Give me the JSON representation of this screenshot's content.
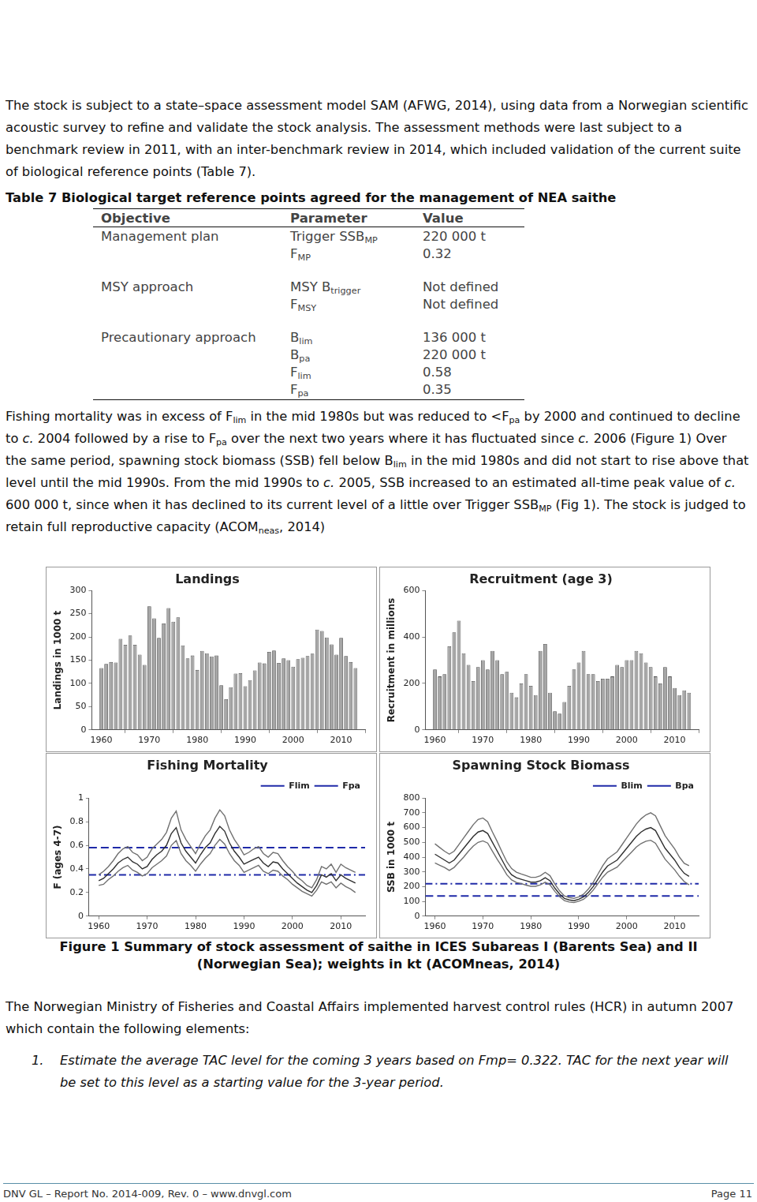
{
  "paragraphs": [
    [
      "The stock is subject to a state–space assessment model SAM (AFWG, 2014), using data from a Norwegian scientific acoustic survey to refine and validate the stock analysis. The assessment methods were last subject to a benchmark review in 2011, with an inter-benchmark review in 2014, which included validation of the current suite of biological reference points (Table 7)."
    ],
    [
      "Fishing mortality was in excess of F",
      {
        "sub": "lim"
      },
      " in the mid 1980s but was reduced to <F",
      {
        "sub": "pa"
      },
      " by 2000 and continued to decline to ",
      {
        "i": "c."
      },
      " 2004 followed by a rise to F",
      {
        "sub": "pa"
      },
      " over the next two years where it has fluctuated since ",
      {
        "i": "c."
      },
      " 2006 (Figure 1) Over the same period, spawning stock biomass (SSB) fell below B",
      {
        "sub": "lim"
      },
      " in the mid 1980s and did not start to rise above that level until the mid 1990s. From the mid 1990s to ",
      {
        "i": "c."
      },
      " 2005, SSB increased to an estimated all-time peak value of ",
      {
        "i": "c."
      },
      " 600 000 t, since when it has declined to its current level of a little over Trigger SSB",
      {
        "sub": "MP"
      },
      " (Fig 1). The stock is judged to retain full reproductive capacity (ACOM",
      {
        "sub": "neas"
      },
      ", 2014)"
    ],
    [
      "The Norwegian Ministry of Fisheries and Coastal Affairs implemented harvest control rules (HCR) in autumn 2007 which contain the following elements:"
    ]
  ],
  "table": {
    "title": "Table 7 Biological target reference points agreed for the management of NEA saithe",
    "header": [
      "Objective",
      "Parameter",
      "Value"
    ],
    "groups": [
      {
        "objective": "Management plan",
        "rows": [
          [
            [
              "Trigger SSB",
              {
                "sub": "MP"
              }
            ],
            "220 000 t"
          ],
          [
            [
              "F",
              {
                "sub": "MP"
              }
            ],
            "0.32"
          ]
        ]
      },
      {
        "objective": "MSY approach",
        "rows": [
          [
            [
              "MSY B",
              {
                "sub": "trigger"
              }
            ],
            "Not defined"
          ],
          [
            [
              "F",
              {
                "sub": "MSY"
              }
            ],
            "Not defined"
          ]
        ]
      },
      {
        "objective": "Precautionary approach",
        "rows": [
          [
            [
              "B",
              {
                "sub": "lim"
              }
            ],
            "136 000 t"
          ],
          [
            [
              "B",
              {
                "sub": "pa"
              }
            ],
            "220 000 t"
          ],
          [
            [
              "F",
              {
                "sub": "lim"
              }
            ],
            "0.58"
          ],
          [
            [
              "F",
              {
                "sub": "pa"
              }
            ],
            "0.35"
          ]
        ]
      }
    ]
  },
  "chart_data": [
    {
      "type": "bar",
      "title": "Landings",
      "y_label": "Landings in 1000 t",
      "x": [
        1960,
        1961,
        1962,
        1963,
        1964,
        1965,
        1966,
        1967,
        1968,
        1969,
        1970,
        1971,
        1972,
        1973,
        1974,
        1975,
        1976,
        1977,
        1978,
        1979,
        1980,
        1981,
        1982,
        1983,
        1984,
        1985,
        1986,
        1987,
        1988,
        1989,
        1990,
        1991,
        1992,
        1993,
        1994,
        1995,
        1996,
        1997,
        1998,
        1999,
        2000,
        2001,
        2002,
        2003,
        2004,
        2005,
        2006,
        2007,
        2008,
        2009,
        2010,
        2011,
        2012,
        2013
      ],
      "series": [
        {
          "color": "#a6a6a6",
          "values": [
            133,
            142,
            146,
            145,
            196,
            183,
            203,
            183,
            162,
            140,
            266,
            240,
            198,
            229,
            262,
            233,
            242,
            182,
            154,
            160,
            129,
            170,
            165,
            158,
            160,
            96,
            66,
            92,
            121,
            122,
            94,
            107,
            128,
            145,
            143,
            168,
            171,
            144,
            154,
            150,
            136,
            152,
            155,
            159,
            164,
            216,
            213,
            199,
            184,
            162,
            198,
            159,
            146,
            133
          ]
        }
      ],
      "xlim": [
        1958,
        2015
      ],
      "xticks": [
        1960,
        1970,
        1980,
        1990,
        2000,
        2010
      ],
      "ylim": [
        0,
        300
      ],
      "yticks": [
        0,
        50,
        100,
        150,
        200,
        250,
        300
      ],
      "grid": false
    },
    {
      "type": "bar",
      "title": "Recruitment (age 3)",
      "y_label": "Recruitment in millions",
      "x": [
        1960,
        1961,
        1962,
        1963,
        1964,
        1965,
        1966,
        1967,
        1968,
        1969,
        1970,
        1971,
        1972,
        1973,
        1974,
        1975,
        1976,
        1977,
        1978,
        1979,
        1980,
        1981,
        1982,
        1983,
        1984,
        1985,
        1986,
        1987,
        1988,
        1989,
        1990,
        1991,
        1992,
        1993,
        1994,
        1995,
        1996,
        1997,
        1998,
        1999,
        2000,
        2001,
        2002,
        2003,
        2004,
        2005,
        2006,
        2007,
        2008,
        2009,
        2010,
        2011,
        2012,
        2013
      ],
      "series": [
        {
          "color": "#a6a6a6",
          "values": [
            260,
            230,
            240,
            360,
            420,
            470,
            330,
            280,
            210,
            270,
            300,
            260,
            340,
            300,
            240,
            250,
            160,
            140,
            200,
            240,
            190,
            150,
            340,
            370,
            160,
            80,
            70,
            120,
            190,
            260,
            290,
            340,
            240,
            240,
            210,
            220,
            220,
            230,
            280,
            270,
            300,
            300,
            340,
            330,
            290,
            270,
            230,
            200,
            270,
            230,
            180,
            150,
            170,
            160
          ]
        }
      ],
      "xlim": [
        1958,
        2015
      ],
      "xticks": [
        1960,
        1970,
        1980,
        1990,
        2000,
        2010
      ],
      "ylim": [
        0,
        600
      ],
      "yticks": [
        0,
        200,
        400,
        600
      ],
      "grid": false
    },
    {
      "type": "line",
      "title": "Fishing Mortality",
      "y_label": "F (ages 4-7)",
      "x": [
        1960,
        1961,
        1962,
        1963,
        1964,
        1965,
        1966,
        1967,
        1968,
        1969,
        1970,
        1971,
        1972,
        1973,
        1974,
        1975,
        1976,
        1977,
        1978,
        1979,
        1980,
        1981,
        1982,
        1983,
        1984,
        1985,
        1986,
        1987,
        1988,
        1989,
        1990,
        1991,
        1992,
        1993,
        1994,
        1995,
        1996,
        1997,
        1998,
        1999,
        2000,
        2001,
        2002,
        2003,
        2004,
        2005,
        2006,
        2007,
        2008,
        2009,
        2010,
        2011,
        2012,
        2013
      ],
      "series": [
        {
          "color": "#303030",
          "line_style": "solid",
          "values": [
            0.3,
            0.32,
            0.36,
            0.4,
            0.45,
            0.48,
            0.5,
            0.46,
            0.44,
            0.4,
            0.42,
            0.48,
            0.52,
            0.55,
            0.6,
            0.7,
            0.75,
            0.62,
            0.55,
            0.5,
            0.45,
            0.52,
            0.58,
            0.62,
            0.7,
            0.76,
            0.72,
            0.62,
            0.55,
            0.5,
            0.44,
            0.46,
            0.48,
            0.5,
            0.45,
            0.42,
            0.46,
            0.45,
            0.4,
            0.36,
            0.32,
            0.28,
            0.25,
            0.22,
            0.2,
            0.26,
            0.35,
            0.33,
            0.36,
            0.3,
            0.35,
            0.32,
            0.3,
            0.28
          ]
        },
        {
          "color": "#707070",
          "line_style": "solid",
          "values": [
            0.26,
            0.27,
            0.31,
            0.34,
            0.38,
            0.41,
            0.43,
            0.39,
            0.37,
            0.34,
            0.36,
            0.41,
            0.44,
            0.47,
            0.51,
            0.6,
            0.64,
            0.53,
            0.47,
            0.43,
            0.38,
            0.44,
            0.49,
            0.53,
            0.6,
            0.65,
            0.61,
            0.53,
            0.47,
            0.43,
            0.37,
            0.39,
            0.41,
            0.43,
            0.38,
            0.36,
            0.39,
            0.38,
            0.34,
            0.31,
            0.27,
            0.24,
            0.21,
            0.19,
            0.17,
            0.22,
            0.29,
            0.27,
            0.29,
            0.24,
            0.28,
            0.25,
            0.23,
            0.2
          ]
        },
        {
          "color": "#707070",
          "line_style": "solid",
          "values": [
            0.35,
            0.38,
            0.42,
            0.47,
            0.53,
            0.57,
            0.59,
            0.54,
            0.52,
            0.47,
            0.5,
            0.57,
            0.61,
            0.65,
            0.71,
            0.83,
            0.89,
            0.73,
            0.65,
            0.59,
            0.53,
            0.61,
            0.68,
            0.73,
            0.83,
            0.9,
            0.85,
            0.73,
            0.65,
            0.59,
            0.52,
            0.54,
            0.57,
            0.59,
            0.53,
            0.5,
            0.54,
            0.53,
            0.47,
            0.42,
            0.38,
            0.33,
            0.3,
            0.26,
            0.24,
            0.31,
            0.42,
            0.4,
            0.44,
            0.37,
            0.44,
            0.41,
            0.39,
            0.37
          ]
        }
      ],
      "hlines": [
        {
          "name": "Flim",
          "value": 0.58,
          "color": "#1f2aa8",
          "line_style": "dashed"
        },
        {
          "name": "Fpa",
          "value": 0.35,
          "color": "#1f2aa8",
          "line_style": "dashdot"
        }
      ],
      "legend": "top right",
      "xlim": [
        1958,
        2015
      ],
      "xticks": [
        1960,
        1970,
        1980,
        1990,
        2000,
        2010
      ],
      "ylim": [
        0,
        1
      ],
      "yticks": [
        0,
        0.2,
        0.4,
        0.6,
        0.8,
        1
      ],
      "grid": false
    },
    {
      "type": "line",
      "title": "Spawning Stock Biomass",
      "y_label": "SSB in 1000 t",
      "x": [
        1960,
        1961,
        1962,
        1963,
        1964,
        1965,
        1966,
        1967,
        1968,
        1969,
        1970,
        1971,
        1972,
        1973,
        1974,
        1975,
        1976,
        1977,
        1978,
        1979,
        1980,
        1981,
        1982,
        1983,
        1984,
        1985,
        1986,
        1987,
        1988,
        1989,
        1990,
        1991,
        1992,
        1993,
        1994,
        1995,
        1996,
        1997,
        1998,
        1999,
        2000,
        2001,
        2002,
        2003,
        2004,
        2005,
        2006,
        2007,
        2008,
        2009,
        2010,
        2011,
        2012,
        2013
      ],
      "series": [
        {
          "color": "#303030",
          "line_style": "solid",
          "values": [
            420,
            400,
            380,
            360,
            380,
            420,
            460,
            500,
            540,
            570,
            580,
            560,
            500,
            440,
            380,
            320,
            280,
            260,
            250,
            240,
            230,
            230,
            240,
            260,
            240,
            190,
            150,
            120,
            110,
            105,
            115,
            130,
            160,
            200,
            250,
            300,
            340,
            360,
            380,
            420,
            460,
            500,
            540,
            570,
            590,
            600,
            580,
            520,
            460,
            420,
            380,
            330,
            290,
            270
          ]
        },
        {
          "color": "#707070",
          "line_style": "solid",
          "values": [
            360,
            345,
            330,
            310,
            330,
            365,
            400,
            440,
            475,
            500,
            510,
            495,
            440,
            385,
            335,
            280,
            245,
            228,
            220,
            210,
            202,
            202,
            212,
            230,
            212,
            168,
            132,
            105,
            96,
            92,
            101,
            114,
            141,
            176,
            220,
            264,
            298,
            315,
            332,
            366,
            400,
            434,
            468,
            492,
            508,
            514,
            494,
            440,
            386,
            350,
            314,
            270,
            234,
            212
          ]
        },
        {
          "color": "#707070",
          "line_style": "solid",
          "values": [
            490,
            465,
            440,
            420,
            440,
            485,
            530,
            575,
            620,
            655,
            665,
            640,
            570,
            505,
            435,
            368,
            322,
            298,
            286,
            275,
            263,
            263,
            274,
            297,
            274,
            217,
            171,
            137,
            126,
            120,
            131,
            149,
            183,
            228,
            285,
            342,
            388,
            412,
            436,
            483,
            530,
            577,
            624,
            660,
            686,
            700,
            680,
            612,
            545,
            500,
            455,
            400,
            358,
            342
          ]
        }
      ],
      "hlines": [
        {
          "name": "Blim",
          "value": 136,
          "color": "#1f2aa8",
          "line_style": "dashed"
        },
        {
          "name": "Bpa",
          "value": 220,
          "color": "#1f2aa8",
          "line_style": "dashdot"
        }
      ],
      "legend": "top right",
      "xlim": [
        1958,
        2015
      ],
      "xticks": [
        1960,
        1970,
        1980,
        1990,
        2000,
        2010
      ],
      "ylim": [
        0,
        800
      ],
      "yticks": [
        0,
        100,
        200,
        300,
        400,
        500,
        600,
        700,
        800
      ],
      "grid": false
    }
  ],
  "caption": "Figure 1 Summary of stock assessment of saithe in ICES Subareas I (Barents Sea) and II (Norwegian Sea); weights in kt (ACOMneas, 2014)",
  "list": [
    {
      "number": "1.",
      "text": "Estimate the average TAC level for the coming 3 years based on Fmp= 0.322. TAC for the next year will be set to this level as a starting value for the 3-year period."
    }
  ],
  "footer": {
    "left": "DNV GL – Report No. 2014-009, Rev. 0 – www.dnvgl.com",
    "right": "Page 11"
  }
}
